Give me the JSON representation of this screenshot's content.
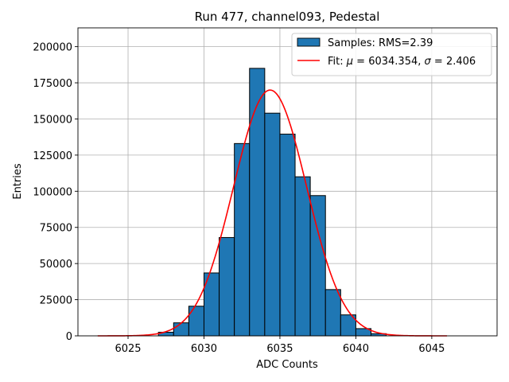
{
  "chart_data": {
    "type": "bar",
    "title": "Run 477, channel093, Pedestal",
    "xlabel": "ADC Counts",
    "ylabel": "Entries",
    "xlim": [
      6021.7,
      6049.3
    ],
    "ylim": [
      0,
      213000
    ],
    "xticks": [
      6025,
      6030,
      6035,
      6040,
      6045
    ],
    "yticks": [
      0,
      25000,
      50000,
      75000,
      100000,
      125000,
      150000,
      175000,
      200000
    ],
    "grid": true,
    "legend_position": "top-right",
    "colors": {
      "bar": "#1f77b4",
      "bar_edge": "#000000",
      "fit": "#ff0000"
    },
    "histogram": {
      "name": "Samples: RMS=2.39",
      "bin_edges": [
        6027,
        6028,
        6029,
        6030,
        6031,
        6032,
        6033,
        6034,
        6035,
        6036,
        6037,
        6038,
        6039,
        6040,
        6041,
        6042
      ],
      "values": [
        2500,
        9000,
        20500,
        43500,
        68000,
        133000,
        185000,
        154000,
        139500,
        110000,
        97000,
        32000,
        14500,
        5000,
        1500
      ]
    },
    "fit": {
      "name_prefix": "Fit: ",
      "mu_symbol": "μ",
      "mu_value": "6034.354",
      "sigma_symbol": "σ",
      "sigma_value": "2.406",
      "mu": 6034.354,
      "sigma": 2.406,
      "amplitude": 170000,
      "x_range": [
        6023,
        6046
      ]
    }
  }
}
